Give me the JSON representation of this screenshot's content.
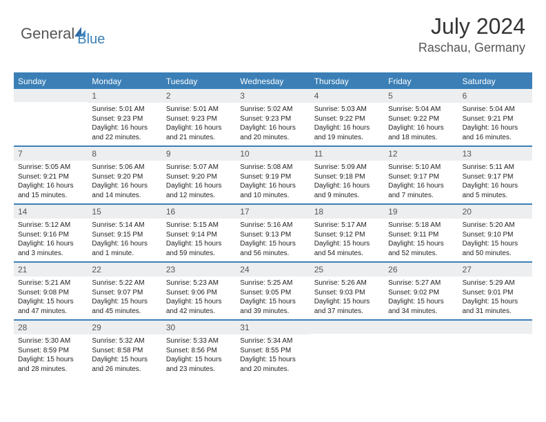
{
  "logo": {
    "part1": "General",
    "part2": "Blue"
  },
  "header": {
    "monthYear": "July 2024",
    "location": "Raschau, Germany"
  },
  "colors": {
    "brand": "#3b7fb6",
    "headerBg": "#3b7fb6",
    "dayNumBg": "#eceeef",
    "text": "#222"
  },
  "dayNames": [
    "Sunday",
    "Monday",
    "Tuesday",
    "Wednesday",
    "Thursday",
    "Friday",
    "Saturday"
  ],
  "weeks": [
    [
      {
        "n": "",
        "sr": "",
        "ss": "",
        "dl": ""
      },
      {
        "n": "1",
        "sr": "Sunrise: 5:01 AM",
        "ss": "Sunset: 9:23 PM",
        "dl": "Daylight: 16 hours and 22 minutes."
      },
      {
        "n": "2",
        "sr": "Sunrise: 5:01 AM",
        "ss": "Sunset: 9:23 PM",
        "dl": "Daylight: 16 hours and 21 minutes."
      },
      {
        "n": "3",
        "sr": "Sunrise: 5:02 AM",
        "ss": "Sunset: 9:23 PM",
        "dl": "Daylight: 16 hours and 20 minutes."
      },
      {
        "n": "4",
        "sr": "Sunrise: 5:03 AM",
        "ss": "Sunset: 9:22 PM",
        "dl": "Daylight: 16 hours and 19 minutes."
      },
      {
        "n": "5",
        "sr": "Sunrise: 5:04 AM",
        "ss": "Sunset: 9:22 PM",
        "dl": "Daylight: 16 hours and 18 minutes."
      },
      {
        "n": "6",
        "sr": "Sunrise: 5:04 AM",
        "ss": "Sunset: 9:21 PM",
        "dl": "Daylight: 16 hours and 16 minutes."
      }
    ],
    [
      {
        "n": "7",
        "sr": "Sunrise: 5:05 AM",
        "ss": "Sunset: 9:21 PM",
        "dl": "Daylight: 16 hours and 15 minutes."
      },
      {
        "n": "8",
        "sr": "Sunrise: 5:06 AM",
        "ss": "Sunset: 9:20 PM",
        "dl": "Daylight: 16 hours and 14 minutes."
      },
      {
        "n": "9",
        "sr": "Sunrise: 5:07 AM",
        "ss": "Sunset: 9:20 PM",
        "dl": "Daylight: 16 hours and 12 minutes."
      },
      {
        "n": "10",
        "sr": "Sunrise: 5:08 AM",
        "ss": "Sunset: 9:19 PM",
        "dl": "Daylight: 16 hours and 10 minutes."
      },
      {
        "n": "11",
        "sr": "Sunrise: 5:09 AM",
        "ss": "Sunset: 9:18 PM",
        "dl": "Daylight: 16 hours and 9 minutes."
      },
      {
        "n": "12",
        "sr": "Sunrise: 5:10 AM",
        "ss": "Sunset: 9:17 PM",
        "dl": "Daylight: 16 hours and 7 minutes."
      },
      {
        "n": "13",
        "sr": "Sunrise: 5:11 AM",
        "ss": "Sunset: 9:17 PM",
        "dl": "Daylight: 16 hours and 5 minutes."
      }
    ],
    [
      {
        "n": "14",
        "sr": "Sunrise: 5:12 AM",
        "ss": "Sunset: 9:16 PM",
        "dl": "Daylight: 16 hours and 3 minutes."
      },
      {
        "n": "15",
        "sr": "Sunrise: 5:14 AM",
        "ss": "Sunset: 9:15 PM",
        "dl": "Daylight: 16 hours and 1 minute."
      },
      {
        "n": "16",
        "sr": "Sunrise: 5:15 AM",
        "ss": "Sunset: 9:14 PM",
        "dl": "Daylight: 15 hours and 59 minutes."
      },
      {
        "n": "17",
        "sr": "Sunrise: 5:16 AM",
        "ss": "Sunset: 9:13 PM",
        "dl": "Daylight: 15 hours and 56 minutes."
      },
      {
        "n": "18",
        "sr": "Sunrise: 5:17 AM",
        "ss": "Sunset: 9:12 PM",
        "dl": "Daylight: 15 hours and 54 minutes."
      },
      {
        "n": "19",
        "sr": "Sunrise: 5:18 AM",
        "ss": "Sunset: 9:11 PM",
        "dl": "Daylight: 15 hours and 52 minutes."
      },
      {
        "n": "20",
        "sr": "Sunrise: 5:20 AM",
        "ss": "Sunset: 9:10 PM",
        "dl": "Daylight: 15 hours and 50 minutes."
      }
    ],
    [
      {
        "n": "21",
        "sr": "Sunrise: 5:21 AM",
        "ss": "Sunset: 9:08 PM",
        "dl": "Daylight: 15 hours and 47 minutes."
      },
      {
        "n": "22",
        "sr": "Sunrise: 5:22 AM",
        "ss": "Sunset: 9:07 PM",
        "dl": "Daylight: 15 hours and 45 minutes."
      },
      {
        "n": "23",
        "sr": "Sunrise: 5:23 AM",
        "ss": "Sunset: 9:06 PM",
        "dl": "Daylight: 15 hours and 42 minutes."
      },
      {
        "n": "24",
        "sr": "Sunrise: 5:25 AM",
        "ss": "Sunset: 9:05 PM",
        "dl": "Daylight: 15 hours and 39 minutes."
      },
      {
        "n": "25",
        "sr": "Sunrise: 5:26 AM",
        "ss": "Sunset: 9:03 PM",
        "dl": "Daylight: 15 hours and 37 minutes."
      },
      {
        "n": "26",
        "sr": "Sunrise: 5:27 AM",
        "ss": "Sunset: 9:02 PM",
        "dl": "Daylight: 15 hours and 34 minutes."
      },
      {
        "n": "27",
        "sr": "Sunrise: 5:29 AM",
        "ss": "Sunset: 9:01 PM",
        "dl": "Daylight: 15 hours and 31 minutes."
      }
    ],
    [
      {
        "n": "28",
        "sr": "Sunrise: 5:30 AM",
        "ss": "Sunset: 8:59 PM",
        "dl": "Daylight: 15 hours and 28 minutes."
      },
      {
        "n": "29",
        "sr": "Sunrise: 5:32 AM",
        "ss": "Sunset: 8:58 PM",
        "dl": "Daylight: 15 hours and 26 minutes."
      },
      {
        "n": "30",
        "sr": "Sunrise: 5:33 AM",
        "ss": "Sunset: 8:56 PM",
        "dl": "Daylight: 15 hours and 23 minutes."
      },
      {
        "n": "31",
        "sr": "Sunrise: 5:34 AM",
        "ss": "Sunset: 8:55 PM",
        "dl": "Daylight: 15 hours and 20 minutes."
      },
      {
        "n": "",
        "sr": "",
        "ss": "",
        "dl": ""
      },
      {
        "n": "",
        "sr": "",
        "ss": "",
        "dl": ""
      },
      {
        "n": "",
        "sr": "",
        "ss": "",
        "dl": ""
      }
    ]
  ]
}
